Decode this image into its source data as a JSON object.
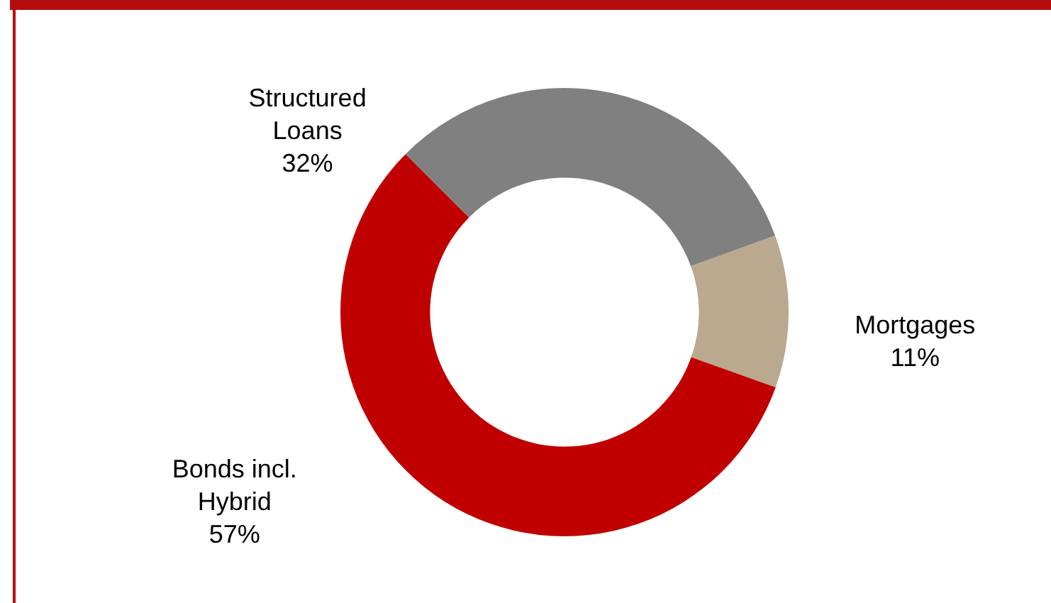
{
  "chart_data": {
    "type": "donut",
    "categories": [
      "Mortgages",
      "Bonds incl. Hybrid",
      "Structured Loans"
    ],
    "values": [
      11,
      57,
      32
    ],
    "colors": [
      "#bba98f",
      "#c00000",
      "#808080"
    ],
    "value_labels": [
      "11%",
      "57%",
      "32%"
    ],
    "legend": false
  }
}
